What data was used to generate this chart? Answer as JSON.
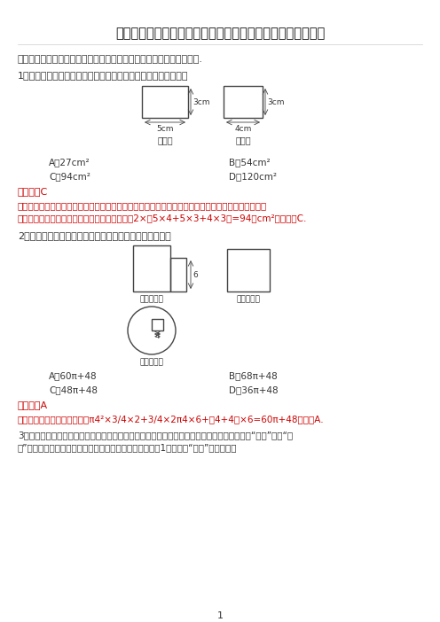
{
  "title": "九年级数学第二十九章《制作立体模型》同步练习（含答案）",
  "section1": "一、选择题：在每小题给出的四个选项中，只有一项是符合题目要求的.",
  "q1": "1．长方体的主视图与左视图如图所示，则这个长方体的表面积是",
  "q1_A": "A．27cm²",
  "q1_B": "B．54cm²",
  "q1_C": "C．94cm²",
  "q1_D": "D．120cm²",
  "q1_ans": "【答案】C",
  "q1_exp1": "【解析】该几何体的主视图以及左视图都是相同的矩形，俰视图也为一个矩形，可确定这个几何体是一",
  "q1_exp2": "个长方体，依题意可得这个长方体的表面积为：2×（5×4+5×3+4×3）=94（cm²），故选C.",
  "q2": "2．如图是一个几何体的三视图，则这个几何体的表面积是",
  "q2_A": "A．60π+48",
  "q2_B": "B．68π+48",
  "q2_C": "C．48π+48",
  "q2_D": "D．36π+48",
  "q2_ans": "【答案】A",
  "q2_exp": "【解析】此几何体的表面积为π4²×3/4×2+3/4×2π4×6+（4+4）×6=60π+48，故选A.",
  "q3_line1": "3．我国古代数学著作《九章算术》中，将底面是直角三角形，且侧棱与底面垂直的三棱柱称为“刍甫”，某“刍",
  "q3_line2": "甫”的三视图如图所示（网格图中每个小正方形的边长均为1），则该“刍甫”的侧面积为",
  "bg": "#ffffff",
  "red": "#cc0000",
  "dark": "#333333"
}
